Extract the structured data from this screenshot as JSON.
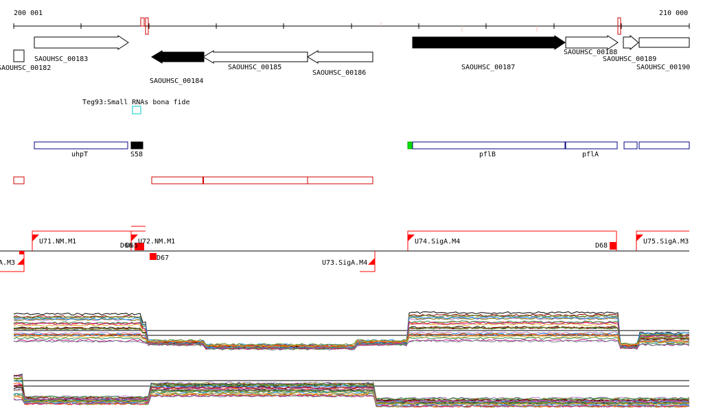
{
  "coords": {
    "start_label": "200 001",
    "end_label": "210 000"
  },
  "colors": {
    "gene": "#000000",
    "rna": "#00C8C8",
    "annot": "#000080",
    "start_marker": "#00DD00",
    "orf": "#CC0000",
    "promoter": "#FF0000",
    "wiggle_lines": [
      "#000000",
      "#8B0000",
      "#9A6B3C",
      "#5A8F29",
      "#B07CC6",
      "#808000",
      "#1E90FF",
      "#FF4500",
      "#2E8B57",
      "#DAA520",
      "#C71585",
      "#708090"
    ]
  },
  "genes": [
    {
      "label": "SAOUHSC_00182",
      "strand": "none",
      "filled": false
    },
    {
      "label": "SAOUHSC_00183",
      "strand": "+",
      "filled": false
    },
    {
      "label": "SAOUHSC_00184",
      "strand": "-",
      "filled": true
    },
    {
      "label": "SAOUHSC_00185",
      "strand": "-",
      "filled": false
    },
    {
      "label": "SAOUHSC_00186",
      "strand": "-",
      "filled": false
    },
    {
      "label": "SAOUHSC_00187",
      "strand": "+",
      "filled": true
    },
    {
      "label": "SAOUHSC_00188",
      "strand": "+",
      "filled": false
    },
    {
      "label": "SAOUHSC_00189",
      "strand": "+",
      "filled": false
    },
    {
      "label": "SAOUHSC_00190",
      "strand": "none",
      "filled": false
    }
  ],
  "rna_track": {
    "label": "Teg93:Small RNAs bona fide"
  },
  "annotations": [
    {
      "label": "uhpT"
    },
    {
      "label": "S58"
    },
    {
      "label": "pflB"
    },
    {
      "label": "pflA"
    }
  ],
  "promoters": [
    {
      "label": "U71.NM.M1"
    },
    {
      "label": "U72.NM.M1"
    },
    {
      "label": "U74.SigA.M4"
    },
    {
      "label": "U75.SigA.M3"
    },
    {
      "label": "D67"
    },
    {
      "label": "U73.SigA.M4"
    },
    {
      "label": "D68"
    },
    {
      "label": "D66"
    },
    {
      "label": "D65"
    },
    {
      "label": "A.M3"
    }
  ]
}
